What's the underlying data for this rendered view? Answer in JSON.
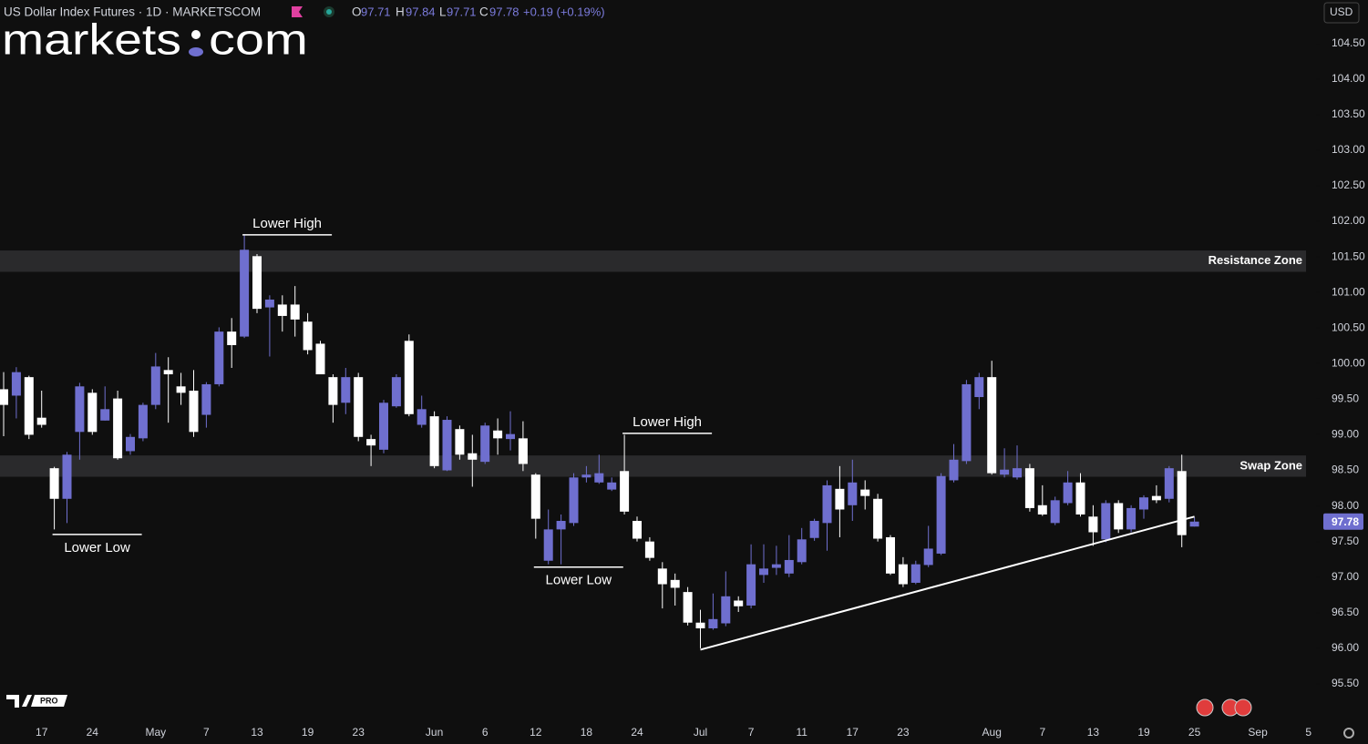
{
  "header": {
    "symbol": "US Dollar Index Futures · 1D · MARKETSCOM",
    "ohlc_labels": [
      "O",
      "H",
      "L",
      "C"
    ],
    "change": "+0.19 (+0.19%)",
    "currency": "USD",
    "logo": [
      "markets",
      "com"
    ],
    "badge": "PRO"
  },
  "chart_data": {
    "type": "candlestick",
    "categories": [
      null,
      null,
      null,
      "17",
      null,
      null,
      null,
      "24",
      null,
      null,
      null,
      null,
      "May",
      null,
      null,
      null,
      "7",
      null,
      null,
      null,
      "13",
      null,
      null,
      null,
      "19",
      null,
      null,
      null,
      "23",
      null,
      null,
      null,
      null,
      null,
      "Jun",
      null,
      null,
      null,
      "6",
      null,
      null,
      null,
      "12",
      null,
      null,
      null,
      "18",
      null,
      null,
      null,
      "24",
      null,
      null,
      null,
      null,
      "Jul",
      null,
      null,
      null,
      "7",
      null,
      null,
      null,
      "11",
      null,
      null,
      null,
      "17",
      null,
      null,
      null,
      "23",
      null,
      null,
      null,
      null,
      null,
      null,
      "Aug",
      null,
      null,
      null,
      "7",
      null,
      null,
      null,
      "13",
      null,
      null,
      null,
      "19",
      null,
      null,
      null,
      "25",
      null,
      null,
      null,
      null,
      "Sep",
      null,
      null,
      null,
      "5"
    ],
    "open": [
      99.64,
      99.55,
      99.81,
      99.24,
      98.53,
      98.1,
      99.04,
      99.59,
      99.2,
      99.51,
      98.77,
      98.95,
      99.42,
      99.91,
      99.68,
      99.62,
      99.28,
      99.71,
      100.45,
      100.38,
      101.51,
      100.79,
      100.83,
      100.83,
      100.59,
      100.28,
      99.81,
      99.45,
      99.81,
      98.94,
      98.79,
      99.4,
      100.32,
      99.14,
      99.26,
      98.5,
      99.08,
      98.74,
      98.62,
      99.06,
      98.94,
      98.95,
      98.44,
      97.23,
      97.67,
      97.76,
      98.4,
      98.33,
      98.23,
      98.49,
      97.79,
      97.5,
      97.12,
      96.96,
      96.79,
      96.36,
      96.28,
      96.35,
      96.67,
      96.6,
      97.03,
      97.13,
      97.05,
      97.21,
      97.55,
      97.76,
      98.24,
      98.01,
      98.23,
      98.1,
      97.56,
      97.18,
      96.92,
      97.17,
      97.33,
      98.36,
      98.63,
      99.53,
      99.81,
      98.44,
      98.4,
      98.53,
      98.01,
      97.76,
      98.04,
      98.33,
      97.85,
      97.53,
      98.04,
      97.67,
      97.95,
      98.14,
      98.1,
      98.49,
      97.71,
      null,
      null,
      null,
      null,
      null,
      null,
      null,
      null,
      null
    ],
    "high": [
      99.88,
      99.95,
      99.83,
      99.62,
      98.55,
      98.76,
      99.73,
      99.64,
      99.68,
      99.62,
      99.01,
      99.45,
      100.15,
      100.09,
      99.87,
      99.91,
      99.74,
      100.51,
      100.64,
      101.82,
      101.54,
      100.96,
      100.96,
      101.09,
      100.71,
      100.32,
      99.85,
      99.94,
      99.87,
      99.0,
      99.49,
      99.85,
      100.41,
      99.55,
      99.33,
      99.26,
      99.13,
      99.0,
      99.17,
      99.23,
      99.33,
      99.19,
      98.46,
      97.95,
      97.88,
      98.46,
      98.56,
      98.72,
      98.4,
      99.0,
      97.85,
      97.56,
      97.21,
      97.05,
      96.86,
      96.54,
      96.77,
      97.08,
      96.73,
      97.46,
      97.46,
      97.44,
      97.59,
      97.69,
      97.82,
      98.36,
      98.56,
      98.65,
      98.36,
      98.17,
      97.59,
      97.28,
      97.23,
      97.72,
      98.46,
      98.87,
      99.77,
      99.87,
      100.04,
      98.81,
      98.85,
      98.59,
      98.29,
      98.13,
      98.49,
      98.46,
      98.01,
      98.08,
      98.08,
      98.01,
      98.15,
      98.29,
      98.56,
      98.72,
      97.84,
      null,
      null,
      null,
      null,
      null,
      null,
      null,
      null,
      null
    ],
    "low": [
      98.98,
      99.23,
      98.94,
      99.1,
      97.67,
      97.76,
      98.65,
      99.0,
      99.2,
      98.65,
      98.72,
      98.91,
      99.36,
      99.17,
      99.42,
      98.97,
      99.1,
      99.68,
      99.94,
      100.36,
      100.71,
      100.1,
      100.45,
      100.38,
      100.13,
      99.85,
      99.17,
      99.29,
      98.91,
      98.56,
      98.74,
      99.38,
      99.26,
      99.1,
      98.53,
      98.49,
      98.65,
      98.27,
      98.59,
      98.72,
      98.78,
      98.49,
      97.54,
      97.18,
      97.18,
      97.72,
      98.33,
      98.31,
      98.21,
      97.88,
      97.5,
      97.23,
      96.56,
      96.6,
      96.32,
      96.0,
      96.26,
      96.31,
      96.51,
      96.56,
      96.92,
      97.03,
      97.0,
      97.18,
      97.51,
      97.37,
      97.56,
      97.79,
      97.95,
      97.5,
      97.03,
      96.86,
      96.9,
      97.14,
      97.31,
      98.33,
      98.59,
      99.36,
      98.44,
      98.4,
      98.37,
      97.92,
      97.86,
      97.73,
      98.01,
      97.85,
      97.44,
      97.49,
      97.62,
      97.63,
      97.82,
      98.04,
      98.05,
      97.42,
      97.71,
      null,
      null,
      null,
      null,
      null,
      null,
      null,
      null,
      null
    ],
    "close": [
      99.42,
      99.88,
      99.0,
      99.14,
      98.1,
      98.72,
      99.68,
      99.04,
      99.36,
      98.67,
      98.97,
      99.42,
      99.96,
      99.85,
      99.59,
      99.04,
      99.71,
      100.45,
      100.26,
      101.6,
      100.77,
      100.9,
      100.67,
      100.62,
      100.19,
      99.85,
      99.42,
      99.81,
      98.97,
      98.85,
      99.45,
      99.81,
      99.29,
      99.36,
      98.56,
      99.21,
      98.72,
      98.65,
      99.13,
      98.95,
      99.01,
      98.59,
      97.82,
      97.67,
      97.79,
      98.4,
      98.44,
      98.46,
      98.33,
      97.92,
      97.54,
      97.27,
      96.9,
      96.85,
      96.36,
      96.28,
      96.41,
      96.73,
      96.59,
      97.18,
      97.12,
      97.18,
      97.24,
      97.53,
      97.79,
      98.29,
      97.95,
      98.33,
      98.14,
      97.54,
      97.05,
      96.9,
      97.18,
      97.4,
      98.42,
      98.65,
      99.71,
      99.81,
      98.46,
      98.51,
      98.53,
      97.97,
      97.88,
      98.08,
      98.33,
      97.88,
      97.63,
      98.04,
      97.67,
      97.97,
      98.12,
      98.08,
      98.53,
      97.59,
      97.78,
      null,
      null,
      null,
      null,
      null,
      null,
      null,
      null,
      null
    ],
    "up_color": "#6f6fcf",
    "down_color": "#ffffff",
    "ylim": [
      95.0,
      105.11
    ],
    "yticks": [
      {
        "value": 95.5,
        "label": "95.50"
      },
      {
        "value": 96,
        "label": "96.00"
      },
      {
        "value": 96.5,
        "label": "96.50"
      },
      {
        "value": 97,
        "label": "97.00"
      },
      {
        "value": 97.5,
        "label": "97.50"
      },
      {
        "value": 98,
        "label": "98.00"
      },
      {
        "value": 98.5,
        "label": "98.50"
      },
      {
        "value": 99,
        "label": "99.00"
      },
      {
        "value": 99.5,
        "label": "99.50"
      },
      {
        "value": 100,
        "label": "100.00"
      },
      {
        "value": 100.5,
        "label": "100.50"
      },
      {
        "value": 101,
        "label": "101.00"
      },
      {
        "value": 101.5,
        "label": "101.50"
      },
      {
        "value": 102,
        "label": "102.00"
      },
      {
        "value": 102.5,
        "label": "102.50"
      },
      {
        "value": 103,
        "label": "103.00"
      },
      {
        "value": 103.5,
        "label": "103.50"
      },
      {
        "value": 104,
        "label": "104.00"
      },
      {
        "value": 104.5,
        "label": "104.50"
      }
    ],
    "zones": [
      {
        "label": "Resistance Zone",
        "from": 101.29,
        "to": 101.59
      },
      {
        "label": "Swap Zone",
        "from": 98.41,
        "to": 98.71
      }
    ],
    "annotations": [
      {
        "text": "Lower High",
        "x": 19,
        "y": 101.81
      },
      {
        "text": "Lower Low",
        "x": 4,
        "y": 97.6
      },
      {
        "text": "Lower Low",
        "x": 42,
        "y": 97.14
      },
      {
        "text": "Lower High",
        "x": 49,
        "y": 99.02
      }
    ],
    "trendline": {
      "x": [
        55,
        94
      ],
      "y": [
        95.98,
        97.85
      ]
    }
  }
}
